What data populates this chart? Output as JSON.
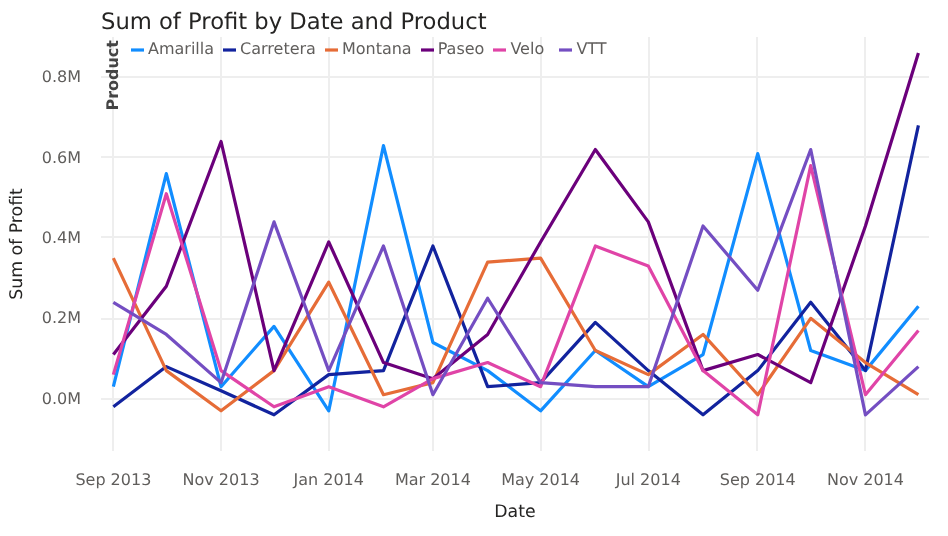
{
  "chart_data": {
    "type": "line",
    "title": "Sum of Profit by Date and Product",
    "xlabel": "Date",
    "ylabel": "Sum of Profit",
    "legend_title": "Product",
    "legend": "top left",
    "grid": true,
    "marker": "none",
    "line_style": "solid",
    "x": [
      "2013-09",
      "2013-10",
      "2013-11",
      "2013-12",
      "2014-01",
      "2014-02",
      "2014-03",
      "2014-04",
      "2014-05",
      "2014-06",
      "2014-07",
      "2014-08",
      "2014-09",
      "2014-10",
      "2014-11",
      "2014-12"
    ],
    "xlim": [
      "2013-08-25",
      "2014-12-07"
    ],
    "xticks": [
      {
        "value": "2013-09",
        "label": "Sep 2013"
      },
      {
        "value": "2013-11",
        "label": "Nov 2013"
      },
      {
        "value": "2014-01",
        "label": "Jan 2014"
      },
      {
        "value": "2014-03",
        "label": "Mar 2014"
      },
      {
        "value": "2014-05",
        "label": "May 2014"
      },
      {
        "value": "2014-07",
        "label": "Jul 2014"
      },
      {
        "value": "2014-09",
        "label": "Sep 2014"
      },
      {
        "value": "2014-11",
        "label": "Nov 2014"
      }
    ],
    "ylim": [
      -0.13,
      0.9
    ],
    "yticks": [
      {
        "value": 0,
        "label": "0.0M"
      },
      {
        "value": 0.2,
        "label": "0.2M"
      },
      {
        "value": 0.4,
        "label": "0.4M"
      },
      {
        "value": 0.6,
        "label": "0.6M"
      },
      {
        "value": 0.8,
        "label": "0.8M"
      }
    ],
    "series": [
      {
        "name": "Amarilla",
        "color": "#118dff",
        "values": [
          0.03,
          0.56,
          0.03,
          0.18,
          -0.03,
          0.63,
          0.14,
          0.07,
          -0.03,
          0.12,
          0.03,
          0.11,
          0.61,
          0.12,
          0.07,
          0.23
        ]
      },
      {
        "name": "Carretera",
        "color": "#12239e",
        "values": [
          -0.02,
          0.08,
          0.02,
          -0.04,
          0.06,
          0.07,
          0.38,
          0.03,
          0.04,
          0.19,
          0.07,
          -0.04,
          0.07,
          0.24,
          0.07,
          0.68
        ]
      },
      {
        "name": "Montana",
        "color": "#e66c37",
        "values": [
          0.35,
          0.07,
          -0.03,
          0.07,
          0.29,
          0.01,
          0.04,
          0.34,
          0.35,
          0.12,
          0.06,
          0.16,
          0.01,
          0.2,
          0.09,
          0.01
        ]
      },
      {
        "name": "Paseo",
        "color": "#6b007b",
        "values": [
          0.11,
          0.28,
          0.64,
          0.07,
          0.39,
          0.09,
          0.05,
          0.16,
          0.39,
          0.62,
          0.44,
          0.07,
          0.11,
          0.04,
          0.43,
          0.86
        ]
      },
      {
        "name": "Velo",
        "color": "#e044a7",
        "values": [
          0.06,
          0.51,
          0.07,
          -0.02,
          0.03,
          -0.02,
          0.05,
          0.09,
          0.03,
          0.38,
          0.33,
          0.07,
          -0.04,
          0.58,
          0.01,
          0.17
        ]
      },
      {
        "name": "VTT",
        "color": "#744ec2",
        "values": [
          0.24,
          0.16,
          0.04,
          0.44,
          0.07,
          0.38,
          0.01,
          0.25,
          0.04,
          0.03,
          0.03,
          0.43,
          0.27,
          0.62,
          -0.04,
          0.08
        ]
      }
    ]
  }
}
